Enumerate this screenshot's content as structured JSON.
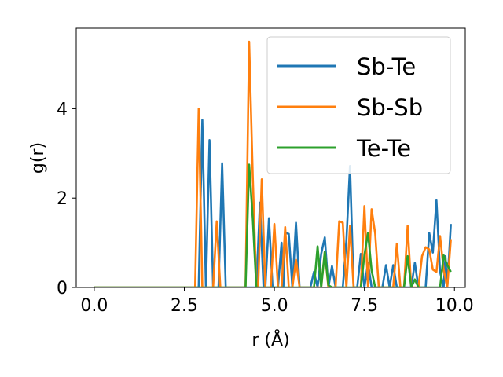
{
  "chart_data": {
    "type": "line",
    "xlabel": "r (Å)",
    "ylabel": "g(r)",
    "xlim": [
      -0.5,
      10.3
    ],
    "ylim": [
      0,
      5.8
    ],
    "xticks": [
      0.0,
      2.5,
      5.0,
      7.5,
      10.0
    ],
    "xtick_labels": [
      "0.0",
      "2.5",
      "5.0",
      "7.5",
      "10.0"
    ],
    "yticks": [
      0,
      2,
      4
    ],
    "ytick_labels": [
      "0",
      "2",
      "4"
    ],
    "grid": false,
    "legend_position": "top-right",
    "series": [
      {
        "name": "Sb-Te",
        "color": "#1f77b4",
        "points": [
          [
            0,
            0
          ],
          [
            2.9,
            0
          ],
          [
            3.0,
            3.75
          ],
          [
            3.1,
            0
          ],
          [
            3.2,
            3.3
          ],
          [
            3.3,
            0
          ],
          [
            3.45,
            0
          ],
          [
            3.55,
            2.78
          ],
          [
            3.65,
            0
          ],
          [
            4.5,
            0
          ],
          [
            4.6,
            1.9
          ],
          [
            4.7,
            0
          ],
          [
            4.75,
            0
          ],
          [
            4.85,
            1.55
          ],
          [
            4.95,
            0
          ],
          [
            5.1,
            0
          ],
          [
            5.2,
            1.0
          ],
          [
            5.25,
            0
          ],
          [
            5.3,
            1.22
          ],
          [
            5.4,
            1.2
          ],
          [
            5.5,
            0
          ],
          [
            5.6,
            1.45
          ],
          [
            5.7,
            0
          ],
          [
            6.0,
            0
          ],
          [
            6.1,
            0.35
          ],
          [
            6.2,
            0
          ],
          [
            6.3,
            0.75
          ],
          [
            6.4,
            1.12
          ],
          [
            6.5,
            0
          ],
          [
            6.6,
            0.48
          ],
          [
            6.7,
            0
          ],
          [
            6.9,
            0
          ],
          [
            7.0,
            1.05
          ],
          [
            7.1,
            2.72
          ],
          [
            7.2,
            0
          ],
          [
            7.3,
            0
          ],
          [
            7.4,
            0.75
          ],
          [
            7.5,
            0
          ],
          [
            7.6,
            0.55
          ],
          [
            7.7,
            0
          ],
          [
            8.0,
            0
          ],
          [
            8.1,
            0.5
          ],
          [
            8.2,
            0
          ],
          [
            8.3,
            0.5
          ],
          [
            8.4,
            0
          ],
          [
            8.8,
            0
          ],
          [
            8.9,
            0.55
          ],
          [
            9.0,
            0
          ],
          [
            9.2,
            0
          ],
          [
            9.3,
            1.22
          ],
          [
            9.4,
            0.78
          ],
          [
            9.5,
            1.95
          ],
          [
            9.6,
            0.35
          ],
          [
            9.7,
            0
          ],
          [
            9.75,
            0.7
          ],
          [
            9.8,
            0
          ],
          [
            9.9,
            1.42
          ]
        ]
      },
      {
        "name": "Sb-Sb",
        "color": "#ff7f0e",
        "points": [
          [
            0,
            0
          ],
          [
            2.8,
            0
          ],
          [
            2.9,
            4.0
          ],
          [
            3.0,
            0
          ],
          [
            3.3,
            0
          ],
          [
            3.4,
            1.48
          ],
          [
            3.5,
            0
          ],
          [
            4.2,
            0
          ],
          [
            4.3,
            5.5
          ],
          [
            4.4,
            2.5
          ],
          [
            4.5,
            0
          ],
          [
            4.55,
            0
          ],
          [
            4.65,
            2.42
          ],
          [
            4.75,
            0
          ],
          [
            4.9,
            0
          ],
          [
            5.0,
            1.42
          ],
          [
            5.1,
            0
          ],
          [
            5.2,
            0
          ],
          [
            5.3,
            1.35
          ],
          [
            5.4,
            0
          ],
          [
            5.5,
            0
          ],
          [
            5.6,
            0.62
          ],
          [
            5.7,
            0
          ],
          [
            6.3,
            0
          ],
          [
            6.4,
            0.8
          ],
          [
            6.5,
            0
          ],
          [
            6.7,
            0
          ],
          [
            6.8,
            1.48
          ],
          [
            6.9,
            1.45
          ],
          [
            7.0,
            0
          ],
          [
            7.1,
            1.38
          ],
          [
            7.2,
            0
          ],
          [
            7.4,
            0
          ],
          [
            7.5,
            1.82
          ],
          [
            7.6,
            0
          ],
          [
            7.7,
            1.75
          ],
          [
            7.8,
            1.2
          ],
          [
            7.9,
            0
          ],
          [
            8.3,
            0
          ],
          [
            8.4,
            0.98
          ],
          [
            8.5,
            0
          ],
          [
            8.6,
            0
          ],
          [
            8.7,
            1.38
          ],
          [
            8.8,
            0
          ],
          [
            9.0,
            0
          ],
          [
            9.1,
            0.7
          ],
          [
            9.2,
            0.9
          ],
          [
            9.3,
            0.85
          ],
          [
            9.4,
            0.4
          ],
          [
            9.5,
            0.35
          ],
          [
            9.6,
            1.15
          ],
          [
            9.7,
            0.4
          ],
          [
            9.8,
            0
          ],
          [
            9.9,
            1.08
          ]
        ]
      },
      {
        "name": "Te-Te",
        "color": "#2ca02c",
        "points": [
          [
            0,
            0
          ],
          [
            4.2,
            0
          ],
          [
            4.3,
            2.75
          ],
          [
            4.4,
            1.55
          ],
          [
            4.5,
            0
          ],
          [
            6.1,
            0
          ],
          [
            6.2,
            0.92
          ],
          [
            6.3,
            0
          ],
          [
            6.4,
            0.8
          ],
          [
            6.5,
            0.05
          ],
          [
            6.6,
            0
          ],
          [
            7.4,
            0
          ],
          [
            7.5,
            0.72
          ],
          [
            7.6,
            1.22
          ],
          [
            7.7,
            0.38
          ],
          [
            7.8,
            0
          ],
          [
            8.6,
            0
          ],
          [
            8.7,
            0.7
          ],
          [
            8.8,
            0
          ],
          [
            8.9,
            0.18
          ],
          [
            9.0,
            0
          ],
          [
            9.6,
            0
          ],
          [
            9.7,
            0.72
          ],
          [
            9.8,
            0.5
          ],
          [
            9.9,
            0.35
          ]
        ]
      }
    ]
  }
}
